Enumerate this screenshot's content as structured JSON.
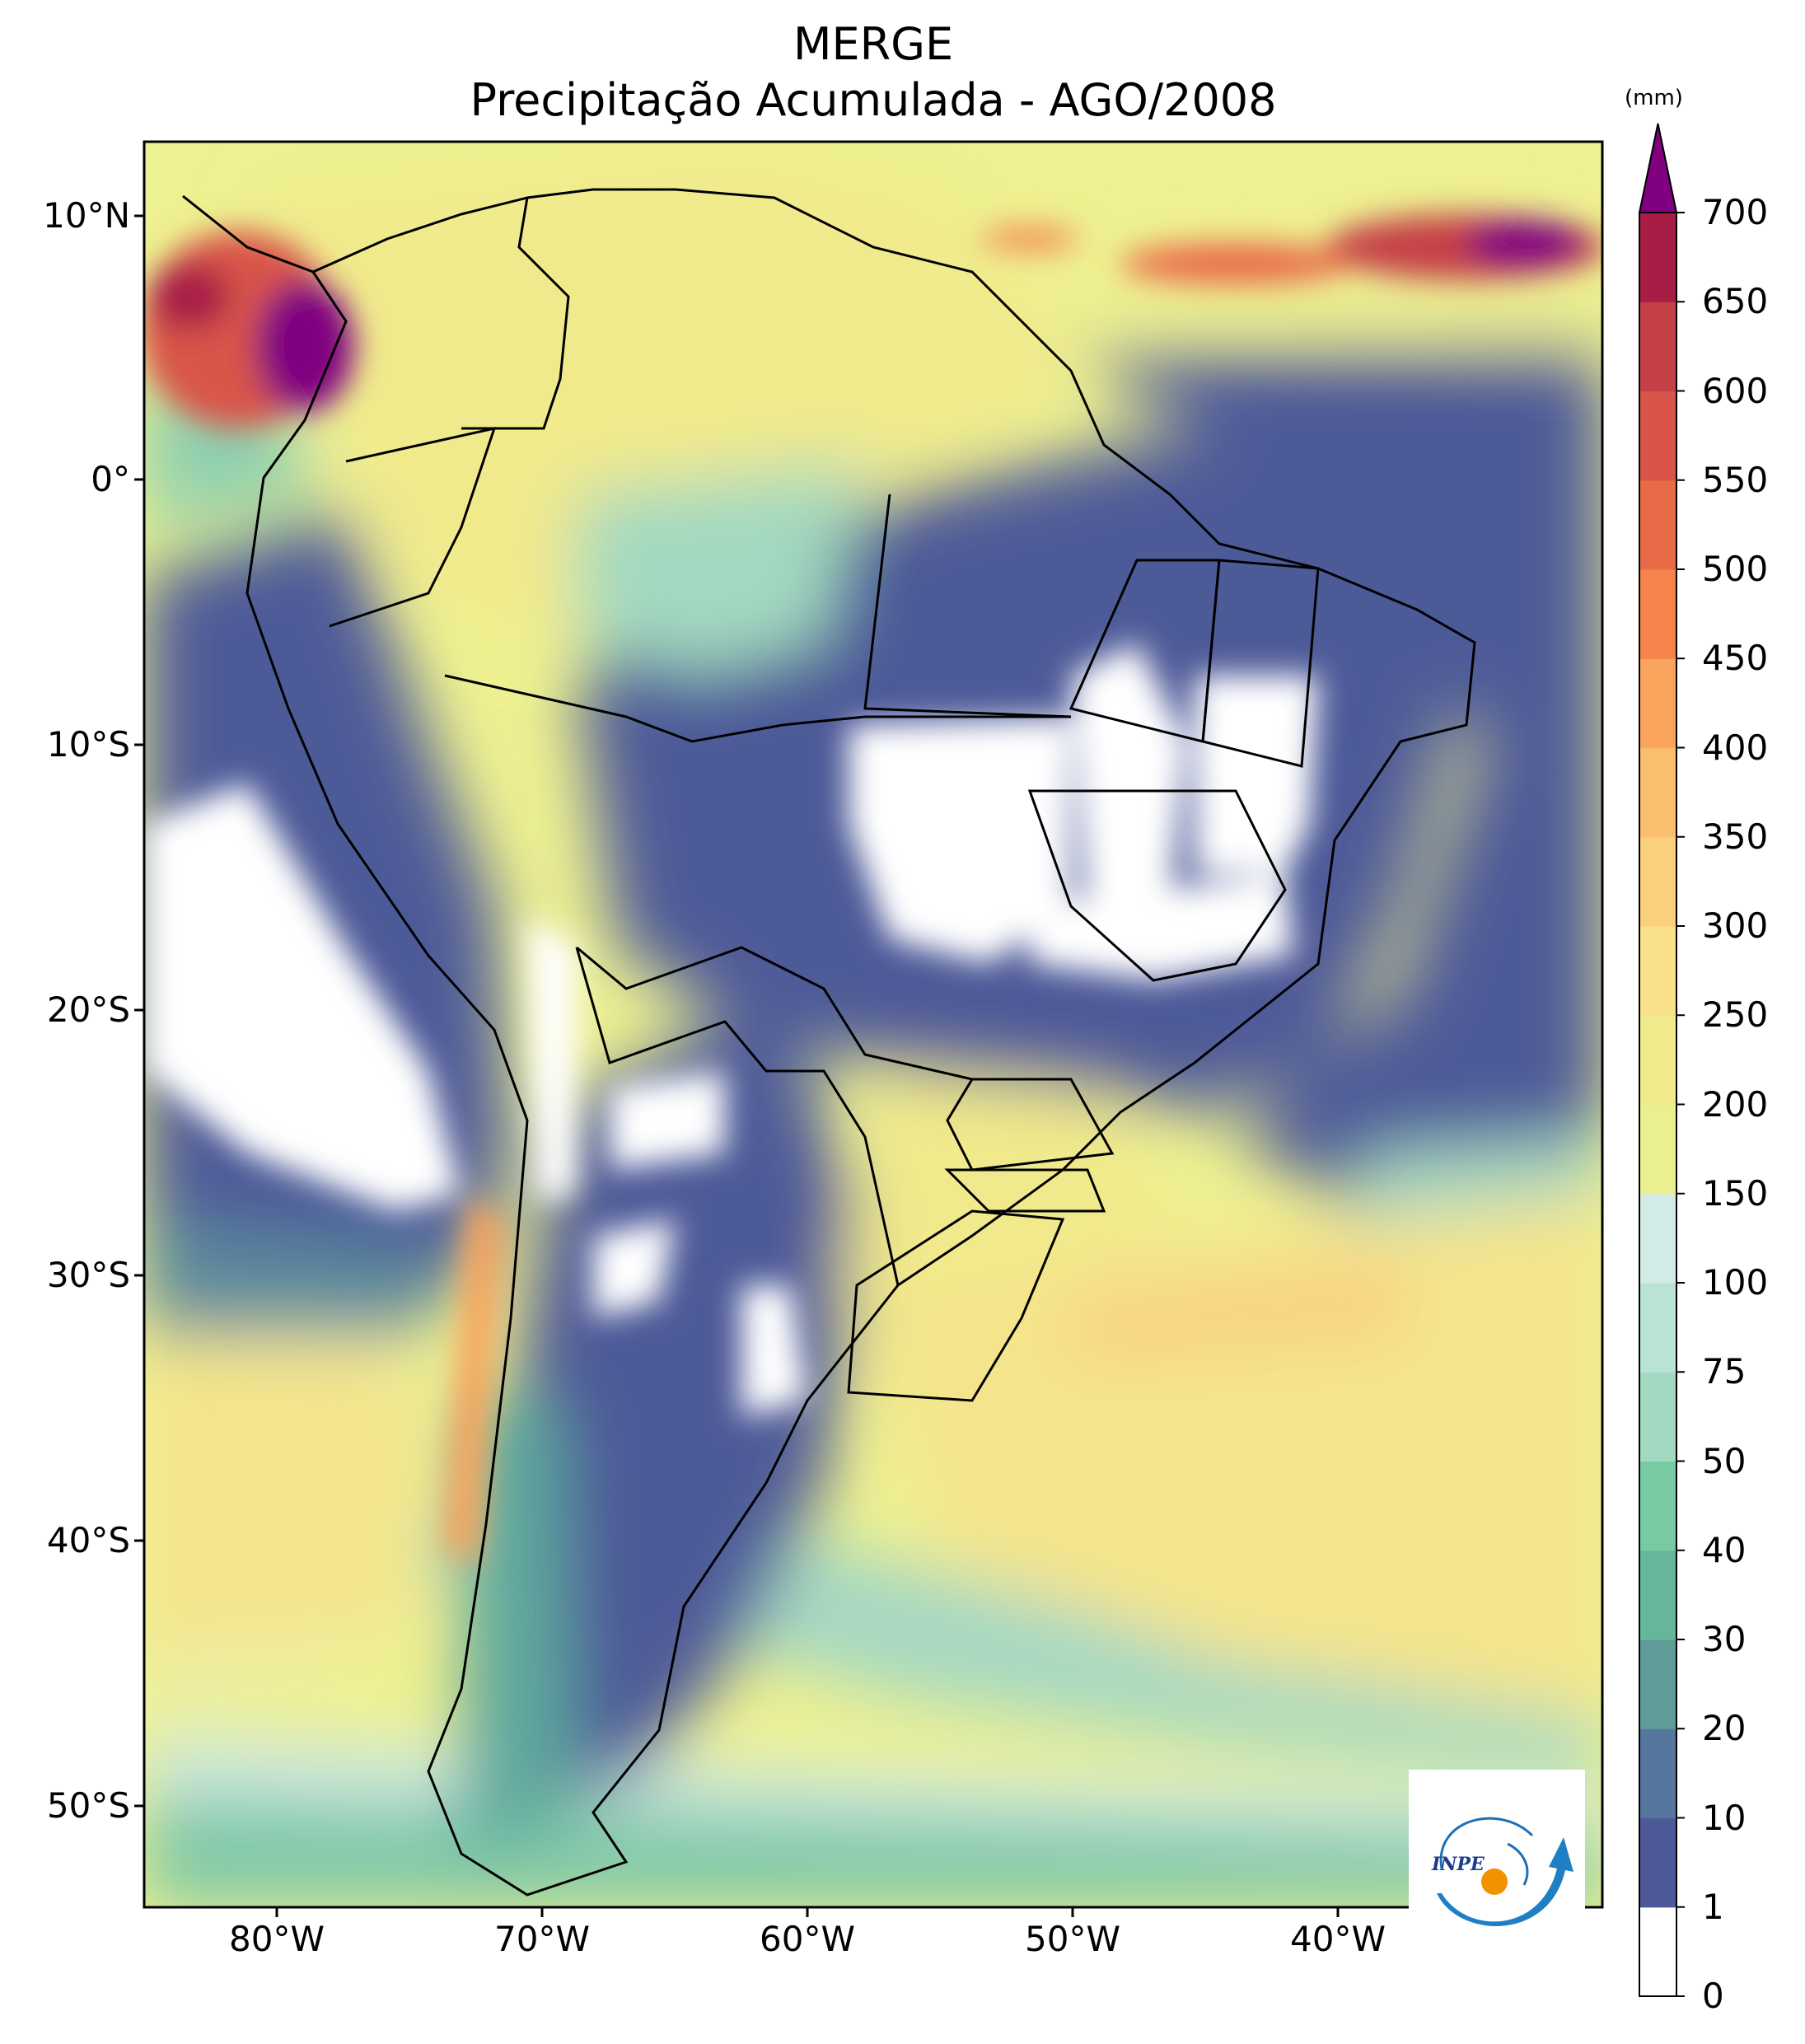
{
  "title": {
    "line1": "MERGE",
    "line2": "Precipitação Acumulada - AGO/2008"
  },
  "axes": {
    "latitude_ticks": [
      "10°N",
      "0°",
      "10°S",
      "20°S",
      "30°S",
      "40°S",
      "50°S"
    ],
    "longitude_ticks": [
      "80°W",
      "70°W",
      "60°W",
      "50°W",
      "40°W"
    ],
    "lon_range": [
      -85,
      -30
    ],
    "lat_range": [
      -56,
      13
    ]
  },
  "colorbar": {
    "units": "(mm)",
    "levels": [
      "0",
      "1",
      "10",
      "20",
      "30",
      "40",
      "50",
      "75",
      "100",
      "150",
      "200",
      "250",
      "300",
      "350",
      "400",
      "450",
      "500",
      "550",
      "600",
      "650",
      "700"
    ],
    "colors": [
      "#ffffff",
      "#4e5a98",
      "#56769e",
      "#5f9c98",
      "#66b69a",
      "#78caa2",
      "#a2d9c0",
      "#b8e3d5",
      "#d3ebe6",
      "#eaef90",
      "#f1ea8c",
      "#f8e18a",
      "#fbd07d",
      "#fbbd6e",
      "#f9a35c",
      "#f4844b",
      "#e96a47",
      "#d85448",
      "#c53f47",
      "#a81d46"
    ],
    "extend_color": "#800080"
  },
  "logo": {
    "text": "INPE"
  },
  "colors": {
    "land_border": "#000000",
    "frame": "#000000"
  }
}
